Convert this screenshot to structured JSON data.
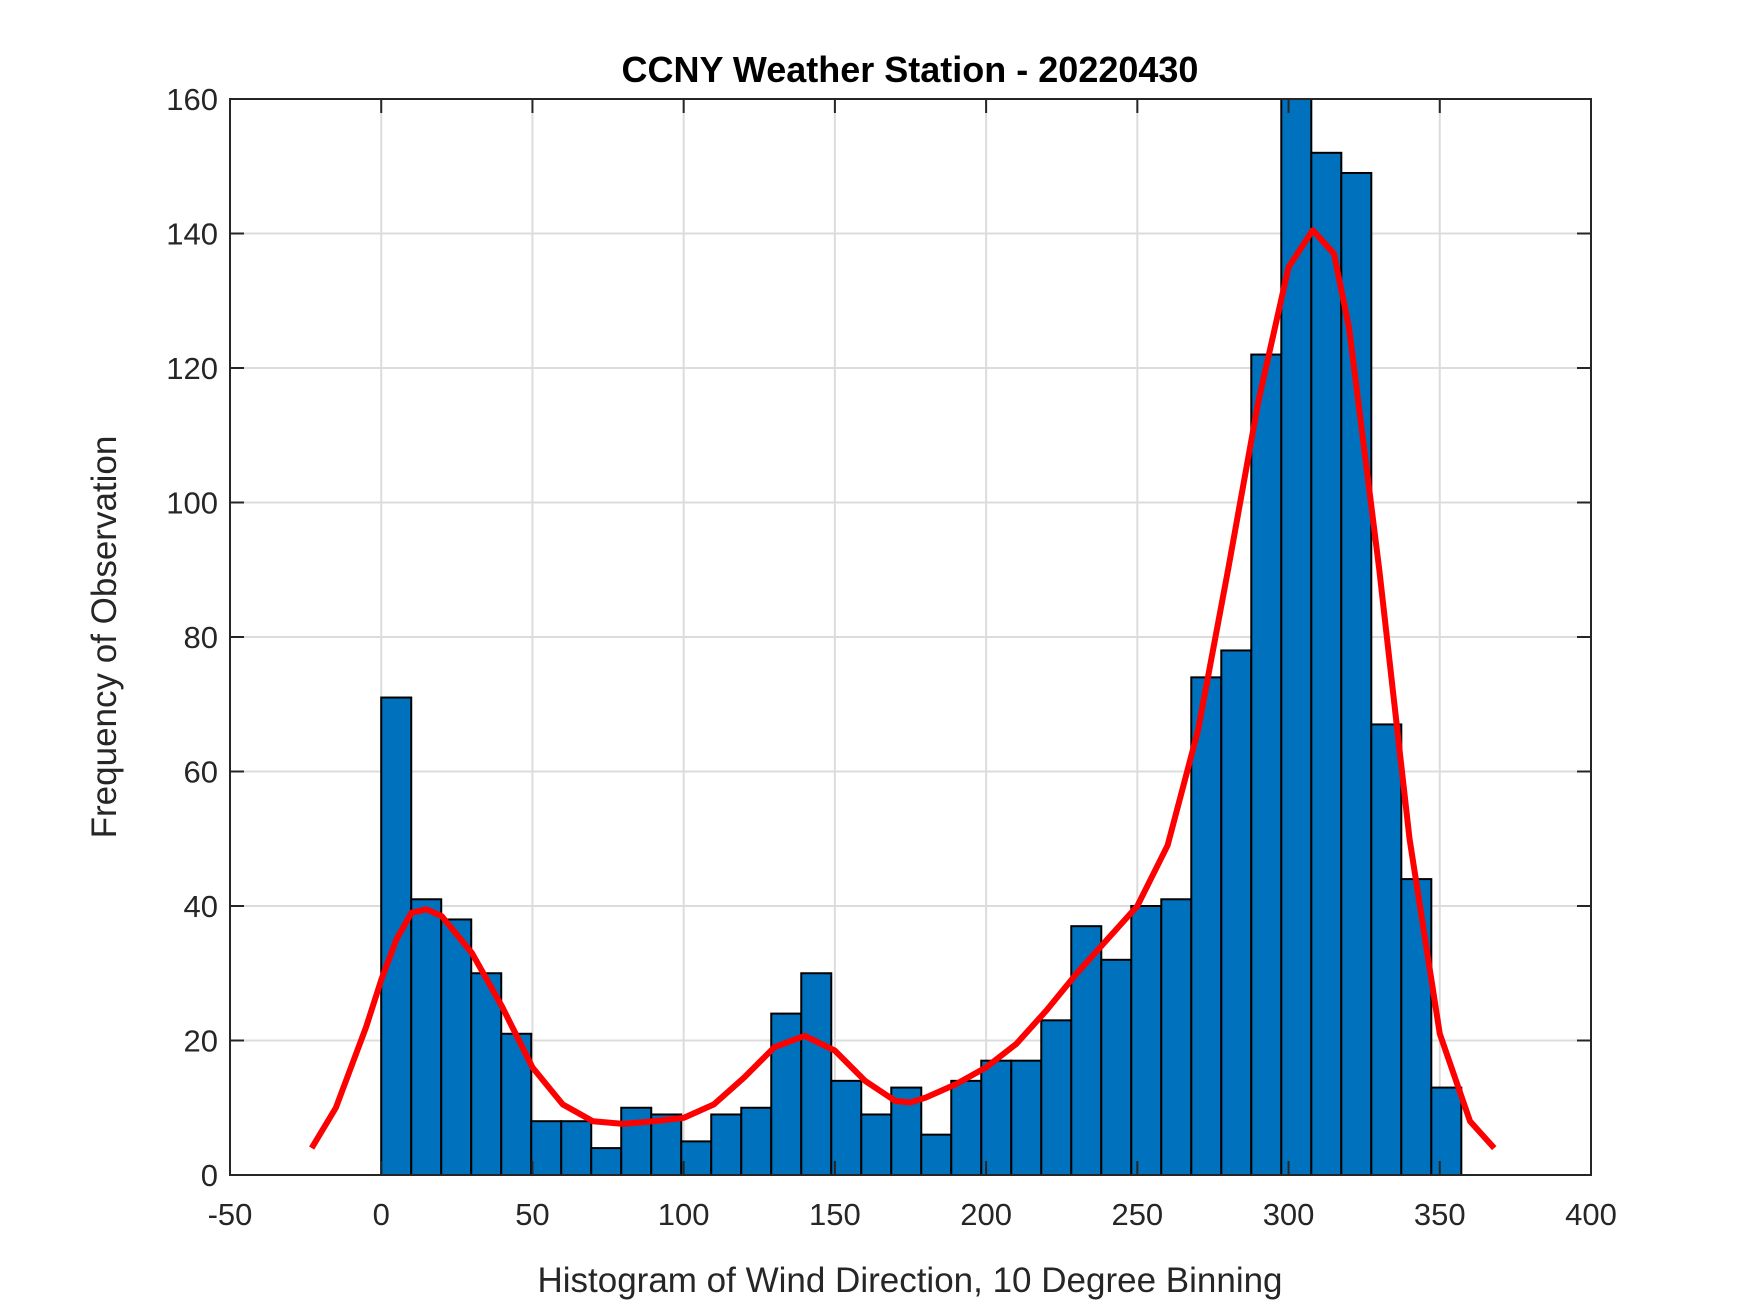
{
  "chart_data": {
    "type": "histogram",
    "title": "CCNY Weather Station - 20220430",
    "xlabel": "Histogram of Wind Direction, 10 Degree Binning",
    "ylabel": "Frequency of Observation",
    "bins": [
      0,
      9.92,
      19.84,
      29.76,
      39.68,
      49.6,
      59.52,
      69.44,
      79.36,
      89.28,
      99.2,
      109.12,
      119.04,
      128.96,
      138.88,
      148.8,
      158.72,
      168.64,
      178.56,
      188.48,
      198.4,
      208.32,
      218.24,
      228.16,
      238.08,
      248,
      257.92,
      267.84,
      277.76,
      287.68,
      297.6,
      307.52,
      317.44,
      327.36,
      337.28,
      347.2,
      357.12
    ],
    "values": [
      71,
      41,
      38,
      30,
      21,
      8,
      8,
      4,
      10,
      9,
      5,
      9,
      10,
      24,
      30,
      14,
      9,
      13,
      6,
      14,
      17,
      17,
      23,
      37,
      32,
      40,
      41,
      74,
      78,
      122,
      160,
      152,
      149,
      67,
      44,
      13
    ],
    "color": "#0072bd",
    "edgecolor": "#000000",
    "curve": {
      "color": "#ff0000",
      "x": [
        -23,
        -15,
        -5,
        0,
        5,
        10,
        15,
        20,
        30,
        40,
        50,
        60,
        70,
        80,
        90,
        100,
        110,
        120,
        130,
        140,
        150,
        160,
        170,
        175,
        180,
        190,
        200,
        210,
        220,
        230,
        240,
        250,
        260,
        270,
        280,
        290,
        300,
        308,
        315,
        320,
        330,
        340,
        350,
        360,
        368
      ],
      "values": [
        4,
        10,
        22,
        29,
        35,
        39,
        39.5,
        38.5,
        33,
        25,
        16,
        10.5,
        8,
        7.6,
        8,
        8.5,
        10.5,
        14.5,
        19,
        20.7,
        18.5,
        14,
        11,
        10.8,
        11.5,
        13.5,
        16,
        19.5,
        24.5,
        30,
        35,
        40,
        49,
        66,
        90,
        115,
        135,
        140.5,
        137,
        126,
        90,
        50,
        21,
        8,
        4
      ]
    },
    "xlim": [
      -50,
      400
    ],
    "xticks": [
      -50,
      0,
      50,
      100,
      150,
      200,
      250,
      300,
      350,
      400
    ],
    "ylim": [
      0,
      160
    ],
    "yticks": [
      0,
      20,
      40,
      60,
      80,
      100,
      120,
      140,
      160
    ],
    "grid": true
  }
}
